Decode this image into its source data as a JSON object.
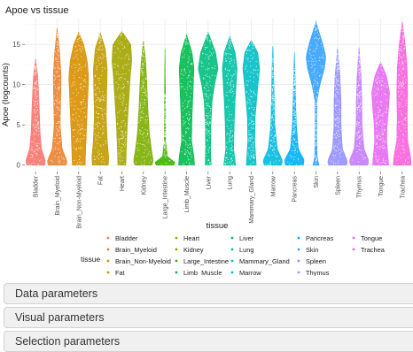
{
  "chart_data": {
    "type": "violin",
    "title": "Apoe vs tissue",
    "xlabel": "tissue",
    "ylabel": "Apoe (logcounts)",
    "ylim": [
      -0.8,
      18.2
    ],
    "yticks": [
      0,
      5,
      10,
      15
    ],
    "grid": true,
    "legend_title": "tissue",
    "legend_position": "bottom",
    "categories": [
      "Bladder",
      "Brain_Myeloid",
      "Brain_Non-Myeloid",
      "Fat",
      "Heart",
      "Kidney",
      "Large_Intestine",
      "Limb_Muscle",
      "Liver",
      "Lung",
      "Mammary_Gland",
      "Marrow",
      "Pancreas",
      "Skin",
      "Spleen",
      "Thymus",
      "Tongue",
      "Trachea"
    ],
    "colors": [
      "#F8766D",
      "#EA8331",
      "#D89000",
      "#C09B00",
      "#A3A500",
      "#7CAE00",
      "#39B600",
      "#00BB4E",
      "#00BF7D",
      "#00C1A3",
      "#00BFC4",
      "#00BAE0",
      "#00B0F6",
      "#35A2FF",
      "#9590FF",
      "#C77CFF",
      "#E76BF3",
      "#FA62DB"
    ],
    "series": [
      {
        "max": 13.2,
        "profile": [
          [
            0,
            0.9
          ],
          [
            0.5,
            1.0
          ],
          [
            2.0,
            0.6
          ],
          [
            4,
            0.45
          ],
          [
            6,
            0.4
          ],
          [
            9,
            0.3
          ],
          [
            11,
            0.22
          ],
          [
            13.2,
            0
          ]
        ]
      },
      {
        "max": 17.0,
        "profile": [
          [
            0,
            0.9
          ],
          [
            0.5,
            1.0
          ],
          [
            2,
            0.5
          ],
          [
            5,
            0.3
          ],
          [
            8,
            0.35
          ],
          [
            11,
            0.4
          ],
          [
            14,
            0.25
          ],
          [
            17,
            0
          ]
        ]
      },
      {
        "max": 16.5,
        "profile": [
          [
            0,
            0.65
          ],
          [
            2,
            0.7
          ],
          [
            5,
            0.8
          ],
          [
            8,
            0.9
          ],
          [
            11,
            1.0
          ],
          [
            13,
            0.85
          ],
          [
            15,
            0.5
          ],
          [
            16.5,
            0
          ]
        ]
      },
      {
        "max": 16.4,
        "profile": [
          [
            0,
            0.8
          ],
          [
            1,
            0.85
          ],
          [
            3,
            0.7
          ],
          [
            6,
            0.6
          ],
          [
            9,
            0.65
          ],
          [
            12,
            0.7
          ],
          [
            14.5,
            0.5
          ],
          [
            16.4,
            0
          ]
        ]
      },
      {
        "max": 16.6,
        "profile": [
          [
            0,
            0.4
          ],
          [
            2,
            0.45
          ],
          [
            5,
            0.55
          ],
          [
            8,
            0.7
          ],
          [
            11,
            0.85
          ],
          [
            13,
            1.0
          ],
          [
            15,
            0.9
          ],
          [
            16.6,
            0
          ]
        ]
      },
      {
        "max": 15.4,
        "profile": [
          [
            0,
            0.85
          ],
          [
            0.5,
            1.0
          ],
          [
            2,
            0.8
          ],
          [
            4,
            0.6
          ],
          [
            7,
            0.45
          ],
          [
            10,
            0.35
          ],
          [
            13,
            0.22
          ],
          [
            15.4,
            0
          ]
        ]
      },
      {
        "max": 14.5,
        "profile": [
          [
            0,
            0.9
          ],
          [
            0.4,
            1.0
          ],
          [
            1.0,
            0.25
          ],
          [
            3,
            0.06
          ],
          [
            8,
            0.05
          ],
          [
            14.5,
            0
          ]
        ]
      },
      {
        "max": 16.2,
        "profile": [
          [
            0,
            0.8
          ],
          [
            1,
            0.75
          ],
          [
            3,
            0.5
          ],
          [
            6,
            0.55
          ],
          [
            9,
            0.65
          ],
          [
            12,
            0.75
          ],
          [
            14,
            0.55
          ],
          [
            16.2,
            0
          ]
        ]
      },
      {
        "max": 16.5,
        "profile": [
          [
            0,
            0.3
          ],
          [
            2,
            0.25
          ],
          [
            5,
            0.28
          ],
          [
            8,
            0.4
          ],
          [
            10,
            0.65
          ],
          [
            12,
            1.0
          ],
          [
            14,
            0.75
          ],
          [
            16.5,
            0
          ]
        ]
      },
      {
        "max": 16.0,
        "profile": [
          [
            0,
            0.6
          ],
          [
            2,
            0.4
          ],
          [
            5,
            0.45
          ],
          [
            8,
            0.55
          ],
          [
            10,
            0.65
          ],
          [
            12,
            0.75
          ],
          [
            14,
            0.55
          ],
          [
            16,
            0
          ]
        ]
      },
      {
        "max": 15.5,
        "profile": [
          [
            0,
            0.5
          ],
          [
            1,
            0.45
          ],
          [
            3,
            0.35
          ],
          [
            6,
            0.4
          ],
          [
            9,
            0.6
          ],
          [
            12,
            0.85
          ],
          [
            14,
            0.65
          ],
          [
            15.5,
            0
          ]
        ]
      },
      {
        "max": 14.8,
        "profile": [
          [
            0,
            0.85
          ],
          [
            0.5,
            1.0
          ],
          [
            2,
            0.45
          ],
          [
            5,
            0.2
          ],
          [
            9,
            0.12
          ],
          [
            12,
            0.08
          ],
          [
            14.8,
            0
          ]
        ]
      },
      {
        "max": 14.0,
        "profile": [
          [
            0,
            0.9
          ],
          [
            0.6,
            1.0
          ],
          [
            2,
            0.4
          ],
          [
            5,
            0.2
          ],
          [
            8,
            0.12
          ],
          [
            11,
            0.07
          ],
          [
            14,
            0
          ]
        ]
      },
      {
        "max": 17.8,
        "profile": [
          [
            0,
            0.3
          ],
          [
            1,
            0.12
          ],
          [
            4,
            0.08
          ],
          [
            8,
            0.1
          ],
          [
            10,
            0.4
          ],
          [
            12,
            0.85
          ],
          [
            13.5,
            1.0
          ],
          [
            15,
            0.7
          ],
          [
            17.8,
            0
          ]
        ]
      },
      {
        "max": 14.5,
        "profile": [
          [
            0,
            0.9
          ],
          [
            0.5,
            1.0
          ],
          [
            2,
            0.5
          ],
          [
            5,
            0.35
          ],
          [
            8,
            0.35
          ],
          [
            11,
            0.25
          ],
          [
            14.5,
            0
          ]
        ]
      },
      {
        "max": 14.6,
        "profile": [
          [
            0,
            0.85
          ],
          [
            0.5,
            1.0
          ],
          [
            2,
            0.5
          ],
          [
            5,
            0.3
          ],
          [
            8,
            0.28
          ],
          [
            11,
            0.2
          ],
          [
            14.6,
            0
          ]
        ]
      },
      {
        "max": 12.8,
        "profile": [
          [
            0,
            0.8
          ],
          [
            1,
            0.75
          ],
          [
            3,
            0.6
          ],
          [
            5,
            0.65
          ],
          [
            7,
            0.8
          ],
          [
            9,
            0.9
          ],
          [
            11,
            0.6
          ],
          [
            12.8,
            0
          ]
        ]
      },
      {
        "max": 17.8,
        "profile": [
          [
            0,
            0.9
          ],
          [
            1,
            0.85
          ],
          [
            3,
            0.55
          ],
          [
            6,
            0.5
          ],
          [
            9,
            0.55
          ],
          [
            12,
            0.5
          ],
          [
            15,
            0.3
          ],
          [
            17.8,
            0
          ]
        ]
      }
    ]
  },
  "panels": {
    "data": "Data parameters",
    "visual": "Visual parameters",
    "selection": "Selection parameters"
  }
}
